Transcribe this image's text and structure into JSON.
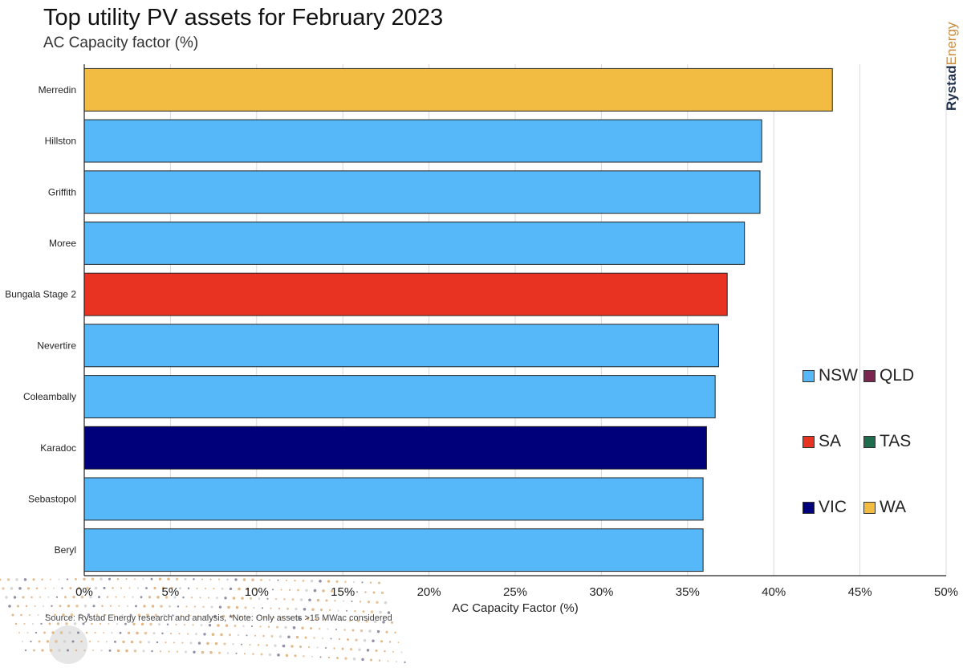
{
  "header": {
    "title": "Top utility PV assets for February 2023",
    "subtitle": "AC Capacity factor (%)"
  },
  "brand": {
    "part1": "Rystad",
    "part2": "Energy"
  },
  "source": "Source: Rystad Energy research and analysis, *Note: Only assets >15 MWac considered",
  "colors": {
    "NSW": "#56b8f8",
    "QLD": "#7a2650",
    "SA": "#e83222",
    "TAS": "#1e6b4d",
    "VIC": "#00007a",
    "WA": "#f2bb42",
    "gridline": "#d9d9d9",
    "bar_border": "#222222",
    "accent_brand": "#c98b3c"
  },
  "legend": {
    "items": [
      {
        "key": "NSW",
        "label": "NSW"
      },
      {
        "key": "QLD",
        "label": "QLD"
      },
      {
        "key": "SA",
        "label": "SA"
      },
      {
        "key": "TAS",
        "label": "TAS"
      },
      {
        "key": "VIC",
        "label": "VIC"
      },
      {
        "key": "WA",
        "label": "WA"
      }
    ],
    "placement": "right"
  },
  "chart_data": {
    "type": "bar",
    "orientation": "horizontal",
    "title": "Top utility PV assets for February 2023",
    "subtitle": "AC Capacity factor (%)",
    "xlabel": "AC Capacity Factor (%)",
    "ylabel": "",
    "xlim": [
      0,
      50
    ],
    "xticks": [
      0,
      5,
      10,
      15,
      20,
      25,
      30,
      35,
      40,
      45,
      50
    ],
    "xtick_labels": [
      "0%",
      "5%",
      "10%",
      "15%",
      "20%",
      "25%",
      "30%",
      "35%",
      "40%",
      "45%",
      "50%"
    ],
    "grid": "vertical",
    "categories": [
      "Merredin",
      "Hillston",
      "Griffith",
      "Moree",
      "Bungala Stage 2",
      "Nevertire",
      "Coleambally",
      "Karadoc",
      "Sebastopol",
      "Beryl"
    ],
    "values": [
      43.4,
      39.3,
      39.2,
      38.3,
      37.3,
      36.8,
      36.6,
      36.1,
      35.9,
      35.9
    ],
    "regions": [
      "WA",
      "NSW",
      "NSW",
      "NSW",
      "SA",
      "NSW",
      "NSW",
      "VIC",
      "NSW",
      "NSW"
    ]
  }
}
